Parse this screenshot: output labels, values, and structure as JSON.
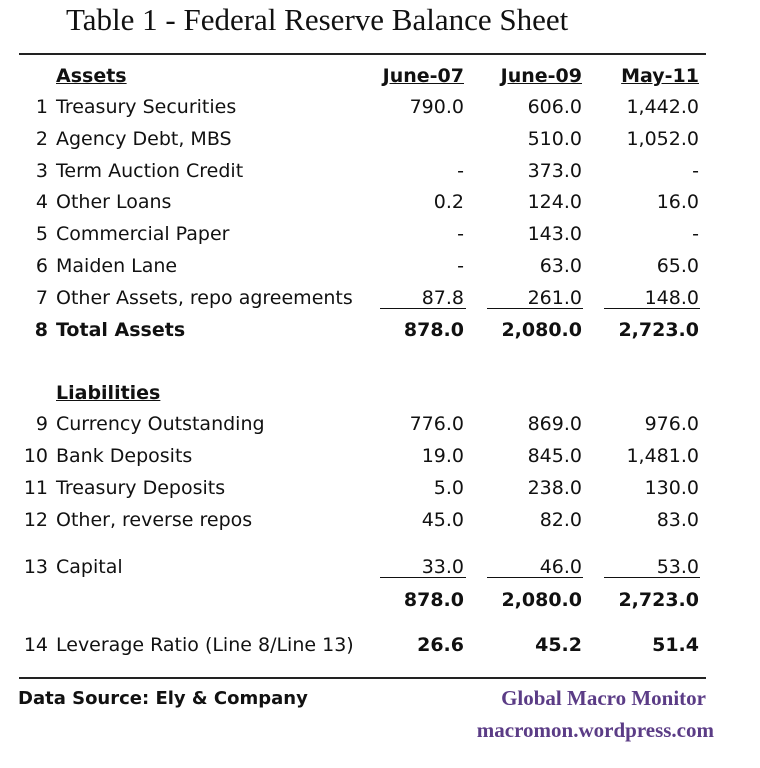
{
  "title": "Table 1 - Federal Reserve Balance Sheet",
  "columns": [
    "June-07",
    "June-09",
    "May-11"
  ],
  "assets_header": "Assets",
  "liabilities_header": "Liabilities",
  "asset_rows": [
    {
      "num": "1",
      "label": "Treasury Securities",
      "v1": "790.0",
      "v2": "606.0",
      "v3": "1,442.0"
    },
    {
      "num": "2",
      "label": "Agency Debt, MBS",
      "v1": "",
      "v2": "510.0",
      "v3": "1,052.0"
    },
    {
      "num": "3",
      "label": "Term Auction Credit",
      "v1": "-",
      "v2": "373.0",
      "v3": "-"
    },
    {
      "num": "4",
      "label": "Other Loans",
      "v1": "0.2",
      "v2": "124.0",
      "v3": "16.0"
    },
    {
      "num": "5",
      "label": "Commercial Paper",
      "v1": "-",
      "v2": "143.0",
      "v3": "-"
    },
    {
      "num": "6",
      "label": "Maiden Lane",
      "v1": "-",
      "v2": "63.0",
      "v3": "65.0"
    },
    {
      "num": "7",
      "label": "Other Assets, repo agreements",
      "v1": "87.8",
      "v2": "261.0",
      "v3": "148.0"
    }
  ],
  "total_assets": {
    "num": "8",
    "label": "Total Assets",
    "v1": "878.0",
    "v2": "2,080.0",
    "v3": "2,723.0"
  },
  "liability_rows": [
    {
      "num": "9",
      "label": "Currency Outstanding",
      "v1": "776.0",
      "v2": "869.0",
      "v3": "976.0"
    },
    {
      "num": "10",
      "label": "Bank Deposits",
      "v1": "19.0",
      "v2": "845.0",
      "v3": "1,481.0"
    },
    {
      "num": "11",
      "label": "Treasury Deposits",
      "v1": "5.0",
      "v2": "238.0",
      "v3": "130.0"
    },
    {
      "num": "12",
      "label": "Other,  reverse repos",
      "v1": "45.0",
      "v2": "82.0",
      "v3": "83.0"
    }
  ],
  "capital": {
    "num": "13",
    "label": "Capital",
    "v1": "33.0",
    "v2": "46.0",
    "v3": "53.0"
  },
  "liabilities_total": {
    "v1": "878.0",
    "v2": "2,080.0",
    "v3": "2,723.0"
  },
  "leverage": {
    "num": "14",
    "label": "Leverage Ratio (Line 8/Line 13)",
    "v1": "26.6",
    "v2": "45.2",
    "v3": "51.4"
  },
  "footer": {
    "source": "Data Source: Ely & Company",
    "brand": "Global Macro Monitor",
    "url": "macromon.wordpress.com"
  }
}
